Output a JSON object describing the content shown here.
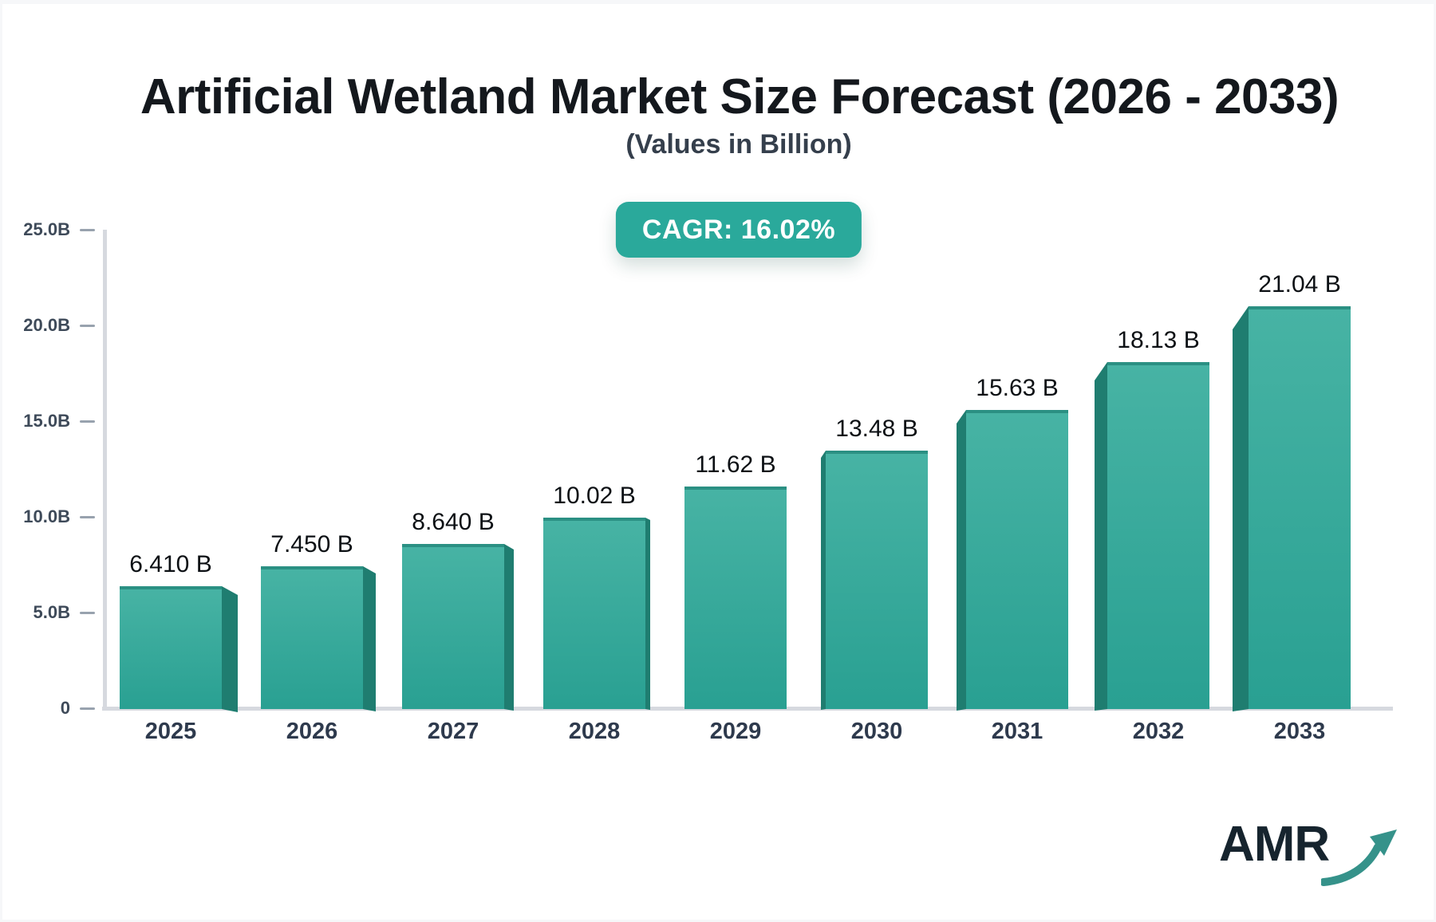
{
  "page": {
    "background": "#f6f7f9",
    "card_background": "#ffffff"
  },
  "header": {
    "title": "Artificial Wetland Market Size Forecast (2026 - 2033)",
    "subtitle": "(Values in Billion)"
  },
  "badge": {
    "label": "CAGR: 16.02%",
    "background": "#2aa99b",
    "text_color": "#ffffff"
  },
  "chart_data": {
    "type": "bar",
    "title": "Artificial Wetland Market Size Forecast (2026 - 2033)",
    "subtitle": "(Values in Billion)",
    "cagr": "16.02%",
    "categories": [
      "2025",
      "2026",
      "2027",
      "2028",
      "2029",
      "2030",
      "2031",
      "2032",
      "2033"
    ],
    "values": [
      6.41,
      7.45,
      8.64,
      10.02,
      11.62,
      13.48,
      15.63,
      18.13,
      21.04
    ],
    "value_labels": [
      "6.410 B",
      "7.450 B",
      "8.640 B",
      "10.02 B",
      "11.62 B",
      "13.48 B",
      "15.63 B",
      "18.13 B",
      "21.04 B"
    ],
    "unit": "Billion",
    "xlabel": "",
    "ylabel": "",
    "ylim": [
      0,
      25
    ],
    "grid": false,
    "legend": "none",
    "y_ticks": [
      {
        "value": 0,
        "label": "0"
      },
      {
        "value": 5,
        "label": "5.0B"
      },
      {
        "value": 10,
        "label": "10.0B"
      },
      {
        "value": 15,
        "label": "15.0B"
      },
      {
        "value": 20,
        "label": "20.0B"
      },
      {
        "value": 25,
        "label": "25.0B"
      }
    ],
    "colors": {
      "bar_front_top": "#47b3a4",
      "bar_front_bottom": "#29a092",
      "bar_top_cap": "#2b9083",
      "bar_side": "#1f7d70",
      "axis_line": "#d6d9df",
      "tick_dash": "#98a2ae",
      "value_label_text": "#0c1014",
      "category_text": "#2e3a4d",
      "ytick_text": "#3e4a59"
    }
  },
  "logo": {
    "text": "AMR",
    "color": "#16242e",
    "arrow_color": "#35928a"
  }
}
